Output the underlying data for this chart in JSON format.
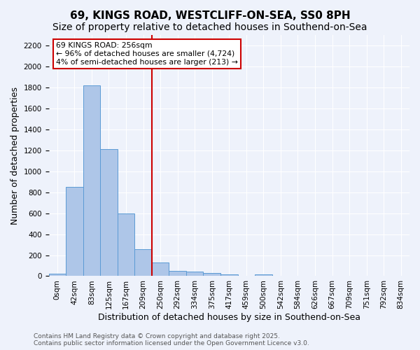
{
  "title": "69, KINGS ROAD, WESTCLIFF-ON-SEA, SS0 8PH",
  "subtitle": "Size of property relative to detached houses in Southend-on-Sea",
  "xlabel": "Distribution of detached houses by size in Southend-on-Sea",
  "ylabel": "Number of detached properties",
  "bin_labels": [
    "0sqm",
    "42sqm",
    "83sqm",
    "125sqm",
    "167sqm",
    "209sqm",
    "250sqm",
    "292sqm",
    "334sqm",
    "375sqm",
    "417sqm",
    "459sqm",
    "500sqm",
    "542sqm",
    "584sqm",
    "626sqm",
    "667sqm",
    "709sqm",
    "751sqm",
    "792sqm",
    "834sqm"
  ],
  "bar_values": [
    25,
    850,
    1820,
    1210,
    600,
    260,
    130,
    50,
    40,
    30,
    15,
    0,
    15,
    0,
    0,
    0,
    0,
    0,
    0,
    0,
    0
  ],
  "bar_color": "#aec6e8",
  "bar_edge_color": "#5b9bd5",
  "vline_x": 6,
  "vline_color": "#cc0000",
  "annotation_text": "69 KINGS ROAD: 256sqm\n← 96% of detached houses are smaller (4,724)\n4% of semi-detached houses are larger (213) →",
  "annotation_box_color": "#ffffff",
  "annotation_box_edge": "#cc0000",
  "ylim": [
    0,
    2300
  ],
  "yticks": [
    0,
    200,
    400,
    600,
    800,
    1000,
    1200,
    1400,
    1600,
    1800,
    2000,
    2200
  ],
  "footnote": "Contains HM Land Registry data © Crown copyright and database right 2025.\nContains public sector information licensed under the Open Government Licence v3.0.",
  "bg_color": "#eef2fb",
  "plot_bg_color": "#eef2fb",
  "grid_color": "#ffffff",
  "title_fontsize": 11,
  "subtitle_fontsize": 10,
  "label_fontsize": 9,
  "tick_fontsize": 7.5,
  "footnote_fontsize": 6.5
}
